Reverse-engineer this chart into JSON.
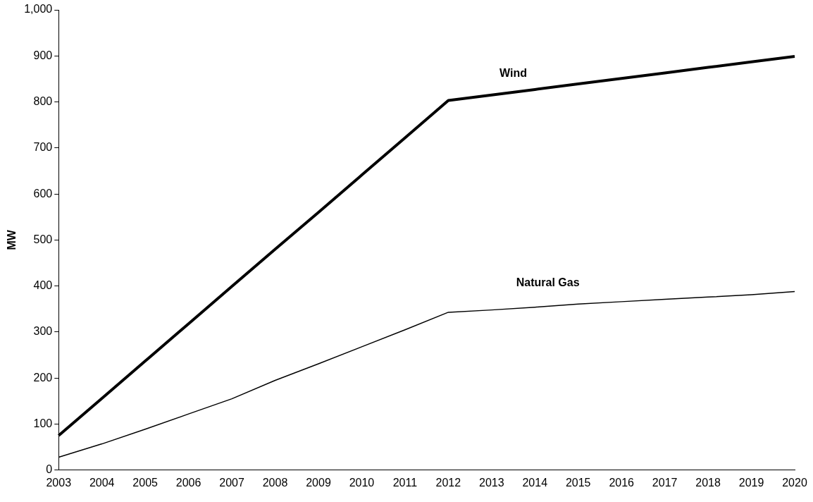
{
  "chart_data": {
    "type": "line",
    "ylabel": "MW",
    "categories": [
      "2003",
      "2004",
      "2005",
      "2006",
      "2007",
      "2008",
      "2009",
      "2010",
      "2011",
      "2012",
      "2013",
      "2014",
      "2015",
      "2016",
      "2017",
      "2018",
      "2019",
      "2020"
    ],
    "series": [
      {
        "name": "Wind",
        "color": "#000000",
        "values": [
          75,
          156,
          237,
          318,
          399,
          480,
          560,
          641,
          722,
          803,
          815,
          827,
          839,
          851,
          863,
          875,
          887,
          899
        ]
      },
      {
        "name": "Natural Gas",
        "color": "#000000",
        "values": [
          28,
          57,
          89,
          122,
          155,
          195,
          231,
          268,
          305,
          343,
          348,
          354,
          361,
          366,
          371,
          376,
          381,
          388
        ]
      }
    ],
    "ylim": [
      0,
      1000
    ],
    "yticks": [
      0,
      100,
      200,
      300,
      400,
      500,
      600,
      700,
      800,
      900,
      {
        "value": 1000,
        "label": "1,000"
      }
    ],
    "grid": false,
    "legend": false,
    "marker": "none",
    "line_style": "solid"
  }
}
